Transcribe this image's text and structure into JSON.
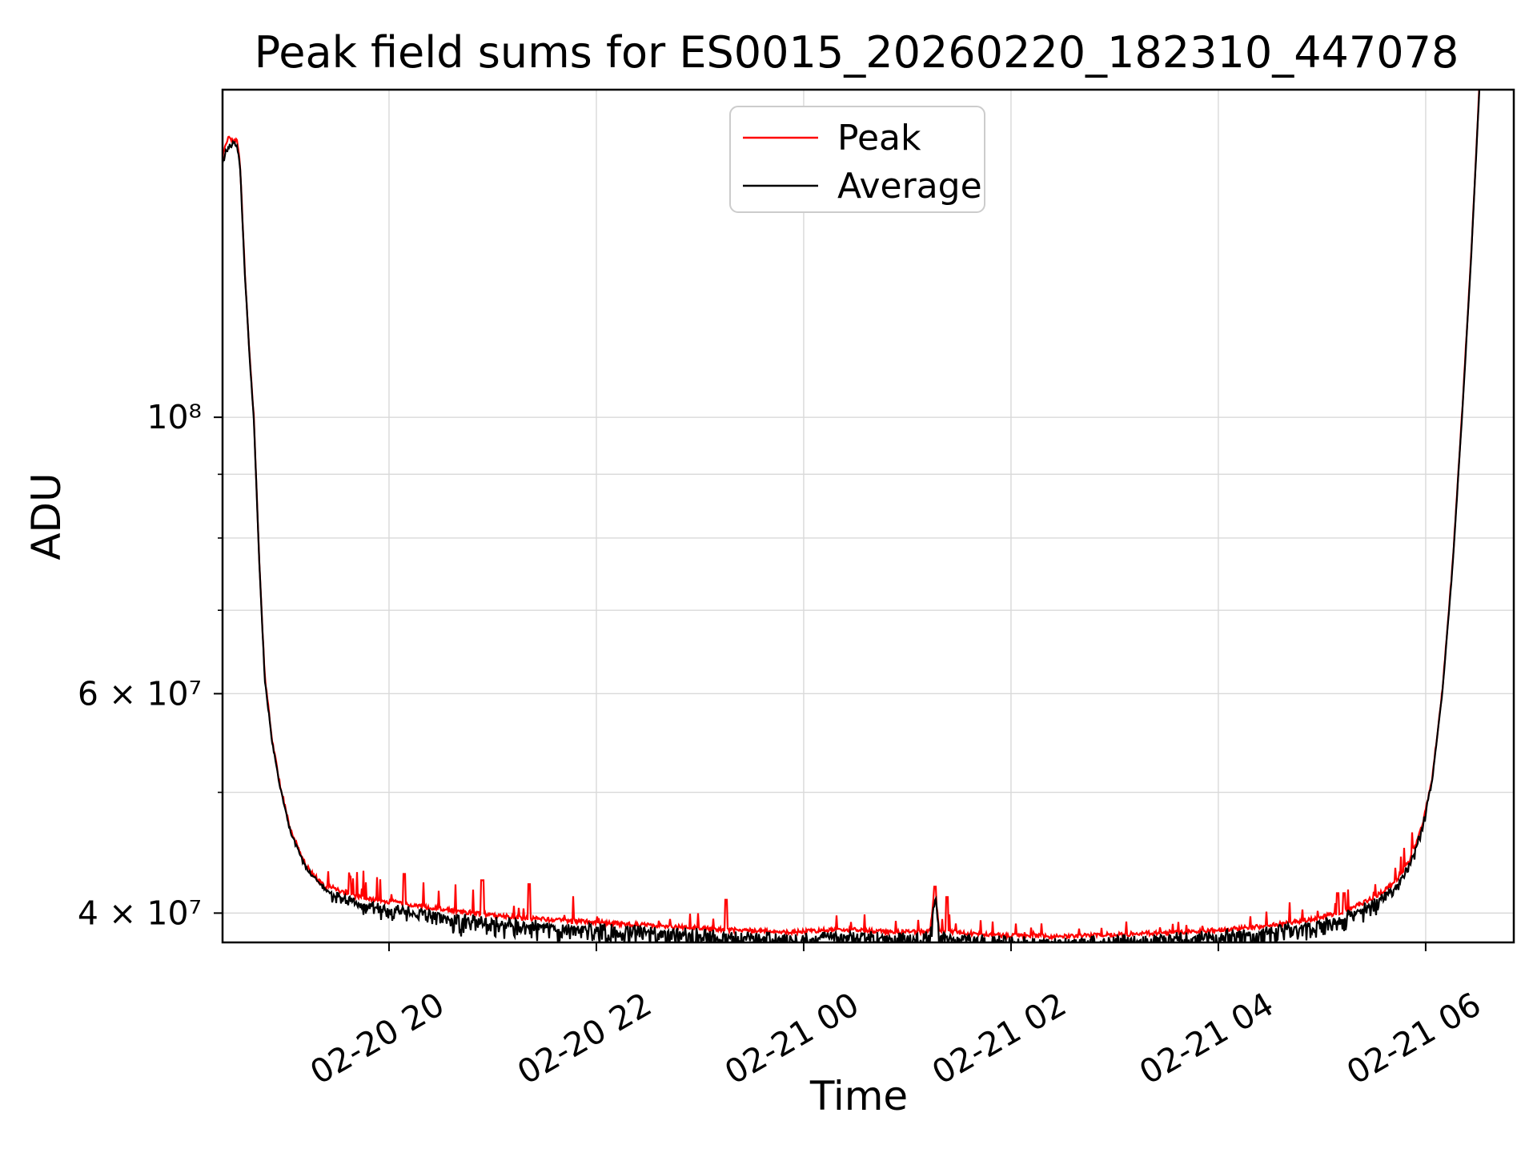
{
  "chart_data": {
    "type": "line",
    "title": "Peak field sums for ES0015_20260220_182310_447078",
    "xlabel": "Time",
    "ylabel": "ADU",
    "y_scale": "log",
    "grid": true,
    "x_unit_note": "hours since 2026-02-20 18:00",
    "xlim": [
      0.394,
      12.85
    ],
    "ylim": [
      37890000.0,
      183200000.0
    ],
    "x_ticks": [
      {
        "hour": 2,
        "label": "02-20 20"
      },
      {
        "hour": 4,
        "label": "02-20 22"
      },
      {
        "hour": 6,
        "label": "02-21 00"
      },
      {
        "hour": 8,
        "label": "02-21 02"
      },
      {
        "hour": 10,
        "label": "02-21 04"
      },
      {
        "hour": 12,
        "label": "02-21 06"
      }
    ],
    "y_ticks_major": [
      {
        "value": 100000000.0,
        "label": "10⁸"
      },
      {
        "value": 60000000.0,
        "label": "6 × 10⁷"
      },
      {
        "value": 40000000.0,
        "label": "4 × 10⁷"
      }
    ],
    "y_ticks_minor": [
      90000000.0,
      80000000.0,
      70000000.0,
      50000000.0
    ],
    "legend": {
      "position": "upper center",
      "entries": [
        "Peak",
        "Average"
      ]
    },
    "series": [
      {
        "name": "Peak",
        "color": "#ff0000",
        "role": "peak-envelope-of-average"
      },
      {
        "name": "Average",
        "color": "#000000",
        "role": "base-curve",
        "anchors": [
          [
            0.394,
            160000000.0
          ],
          [
            0.43,
            164000000.0
          ],
          [
            0.48,
            166000000.0
          ],
          [
            0.535,
            165500000.0
          ],
          [
            0.565,
            158000000.0
          ],
          [
            0.61,
            130000000.0
          ],
          [
            0.66,
            110000000.0
          ],
          [
            0.695,
            100000000.0
          ],
          [
            0.75,
            76000000.0
          ],
          [
            0.8,
            62000000.0
          ],
          [
            0.87,
            55000000.0
          ],
          [
            0.95,
            50500000.0
          ],
          [
            1.05,
            46500000.0
          ],
          [
            1.2,
            43500000.0
          ],
          [
            1.38,
            41800000.0
          ],
          [
            1.6,
            41000000.0
          ],
          [
            1.85,
            40600000.0
          ],
          [
            2.2,
            40200000.0
          ],
          [
            2.7,
            39700000.0
          ],
          [
            3.2,
            39300000.0
          ],
          [
            3.8,
            39000000.0
          ],
          [
            4.5,
            38800000.0
          ],
          [
            5.2,
            38500000.0
          ],
          [
            5.9,
            38300000.0
          ],
          [
            6.4,
            38500000.0
          ],
          [
            6.9,
            38300000.0
          ],
          [
            7.22,
            38400000.0
          ],
          [
            7.265,
            41600000.0
          ],
          [
            7.31,
            38400000.0
          ],
          [
            7.8,
            38100000.0
          ],
          [
            8.5,
            38000000.0
          ],
          [
            9.2,
            38200000.0
          ],
          [
            9.9,
            38400000.0
          ],
          [
            10.4,
            38700000.0
          ],
          [
            10.9,
            39200000.0
          ],
          [
            11.2,
            39800000.0
          ],
          [
            11.5,
            40800000.0
          ],
          [
            11.7,
            42000000.0
          ],
          [
            11.85,
            43800000.0
          ],
          [
            11.97,
            47000000.0
          ],
          [
            12.06,
            51000000.0
          ],
          [
            12.16,
            60000000.0
          ],
          [
            12.26,
            76000000.0
          ],
          [
            12.35,
            100000000.0
          ],
          [
            12.44,
            135000000.0
          ],
          [
            12.52,
            185000000.0
          ],
          [
            12.6,
            260000000.0
          ]
        ]
      }
    ],
    "noise": {
      "seed": 42,
      "average_segments": [
        {
          "t0": 0.394,
          "t1": 0.56,
          "dip": 0.005,
          "jitter": 0.004
        },
        {
          "t0": 0.56,
          "t1": 1.45,
          "dip": 0.004,
          "jitter": 0.003
        },
        {
          "t0": 1.45,
          "t1": 2.6,
          "dip": 0.022,
          "jitter": 0.008
        },
        {
          "t0": 2.6,
          "t1": 4.2,
          "dip": 0.03,
          "jitter": 0.008
        },
        {
          "t0": 4.2,
          "t1": 10.5,
          "dip": 0.038,
          "jitter": 0.008
        },
        {
          "t0": 10.5,
          "t1": 11.55,
          "dip": 0.03,
          "jitter": 0.007
        },
        {
          "t0": 11.55,
          "t1": 12.05,
          "dip": 0.015,
          "jitter": 0.005
        },
        {
          "t0": 12.05,
          "t1": 12.85,
          "dip": 0.004,
          "jitter": 0.002
        }
      ],
      "peak_segments": [
        {
          "t0": 0.394,
          "t1": 0.4,
          "offset": 0.006,
          "spike_p": 0.0,
          "spike_up": 0.0
        },
        {
          "t0": 0.4,
          "t1": 0.47,
          "offset": 0.015,
          "spike_p": 0.3,
          "spike_up": 0.01
        },
        {
          "t0": 0.47,
          "t1": 0.56,
          "offset": 0.007,
          "spike_p": 0.1,
          "spike_up": 0.005
        },
        {
          "t0": 0.56,
          "t1": 1.4,
          "offset": 0.003,
          "spike_p": 0.03,
          "spike_up": 0.01
        },
        {
          "t0": 1.4,
          "t1": 2.6,
          "offset": 0.01,
          "spike_p": 0.11,
          "spike_up": 0.055
        },
        {
          "t0": 2.6,
          "t1": 4.2,
          "offset": 0.01,
          "spike_p": 0.1,
          "spike_up": 0.05
        },
        {
          "t0": 4.2,
          "t1": 6.5,
          "offset": 0.008,
          "spike_p": 0.07,
          "spike_up": 0.035
        },
        {
          "t0": 6.5,
          "t1": 10.4,
          "offset": 0.008,
          "spike_p": 0.06,
          "spike_up": 0.03
        },
        {
          "t0": 10.4,
          "t1": 11.9,
          "offset": 0.008,
          "spike_p": 0.09,
          "spike_up": 0.042
        },
        {
          "t0": 11.9,
          "t1": 12.85,
          "offset": 0.004,
          "spike_p": 0.02,
          "spike_up": 0.008
        }
      ],
      "peak_explicit_spikes": [
        [
          1.62,
          42800000.0
        ],
        [
          2.15,
          43000000.0
        ],
        [
          2.9,
          42500000.0
        ],
        [
          3.35,
          42200000.0
        ],
        [
          5.25,
          41000000.0
        ],
        [
          7.27,
          42000000.0
        ],
        [
          7.38,
          41200000.0
        ],
        [
          11.15,
          41500000.0
        ],
        [
          11.21,
          41500000.0
        ]
      ]
    }
  }
}
